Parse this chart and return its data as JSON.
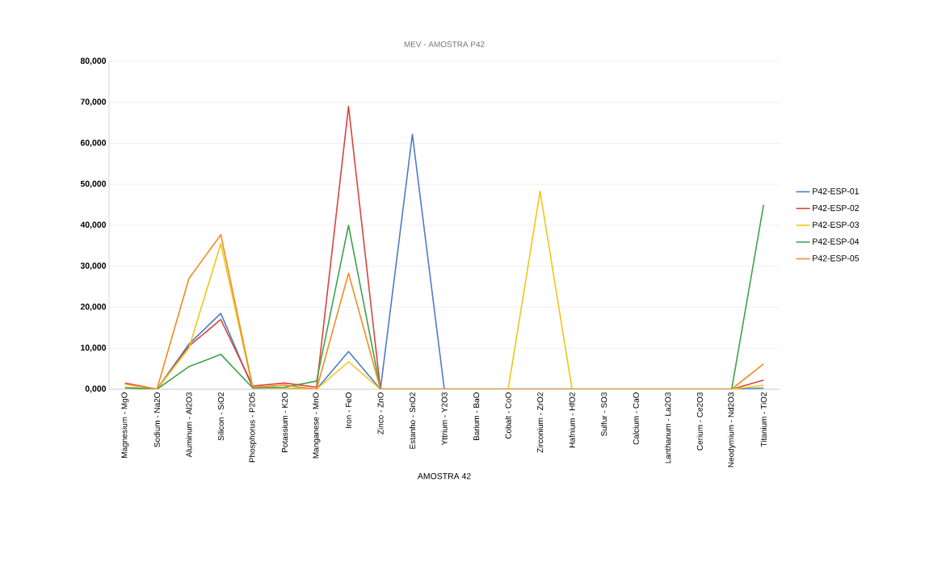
{
  "chart_data": {
    "type": "line",
    "title": "MEV - AMOSTRA P42",
    "xlabel": "AMOSTRA 42",
    "categories": [
      "Magnesium - MgO",
      "Sodium - Na2O",
      "Aluminum - Al2O3",
      "Silicon - SiO2",
      "Phosphorus - P2O5",
      "Potassium - K2O",
      "Manganese - MnO",
      "Iron - FeO",
      "Zinco - ZnO",
      "Estanho - SnO2",
      "Yttrium - Y2O3",
      "Barium - BaO",
      "Cobalt - CoO",
      "Zirconium - ZrO2",
      "Hafnium - HfO2",
      "Sulfur - SO3",
      "Calcium - CaO",
      "Lanthanum - La2O3",
      "Cerium - Ce2O3",
      "Neodymium - Nd2O3",
      "Titanium - TiO2"
    ],
    "series": [
      {
        "name": "P42-ESP-01",
        "color": "#4a7cc8",
        "values": [
          500,
          0,
          11000,
          18500,
          300,
          300,
          0,
          9200,
          0,
          62200,
          0,
          0,
          0,
          0,
          0,
          0,
          0,
          0,
          0,
          0,
          300
        ]
      },
      {
        "name": "P42-ESP-02",
        "color": "#d9443a",
        "values": [
          1500,
          0,
          10500,
          17000,
          800,
          1500,
          500,
          69000,
          0,
          0,
          0,
          0,
          0,
          0,
          0,
          0,
          0,
          0,
          0,
          0,
          2200
        ]
      },
      {
        "name": "P42-ESP-03",
        "color": "#f2c617",
        "values": [
          500,
          0,
          10000,
          35500,
          300,
          300,
          0,
          6700,
          0,
          0,
          0,
          0,
          0,
          48300,
          0,
          0,
          0,
          0,
          0,
          0,
          1000
        ]
      },
      {
        "name": "P42-ESP-04",
        "color": "#3fa34d",
        "values": [
          300,
          0,
          5500,
          8500,
          300,
          500,
          2000,
          40000,
          0,
          0,
          0,
          0,
          0,
          0,
          0,
          0,
          0,
          0,
          0,
          0,
          45000
        ]
      },
      {
        "name": "P42-ESP-05",
        "color": "#f28a1c",
        "values": [
          1300,
          0,
          27000,
          37700,
          500,
          1000,
          0,
          28300,
          0,
          0,
          0,
          0,
          0,
          0,
          0,
          0,
          0,
          0,
          0,
          0,
          6200
        ]
      }
    ],
    "ylim": [
      0,
      80000
    ],
    "yticks": [
      {
        "value": 0,
        "label": "0,000"
      },
      {
        "value": 10000,
        "label": "10,000"
      },
      {
        "value": 20000,
        "label": "20,000"
      },
      {
        "value": 30000,
        "label": "30,000"
      },
      {
        "value": 40000,
        "label": "40,000"
      },
      {
        "value": 50000,
        "label": "50,000"
      },
      {
        "value": 60000,
        "label": "60,000"
      },
      {
        "value": 70000,
        "label": "70,000"
      },
      {
        "value": 80000,
        "label": "80,000"
      }
    ],
    "grid": "y",
    "legend": "right",
    "marker": "none",
    "line_style": "solid"
  }
}
